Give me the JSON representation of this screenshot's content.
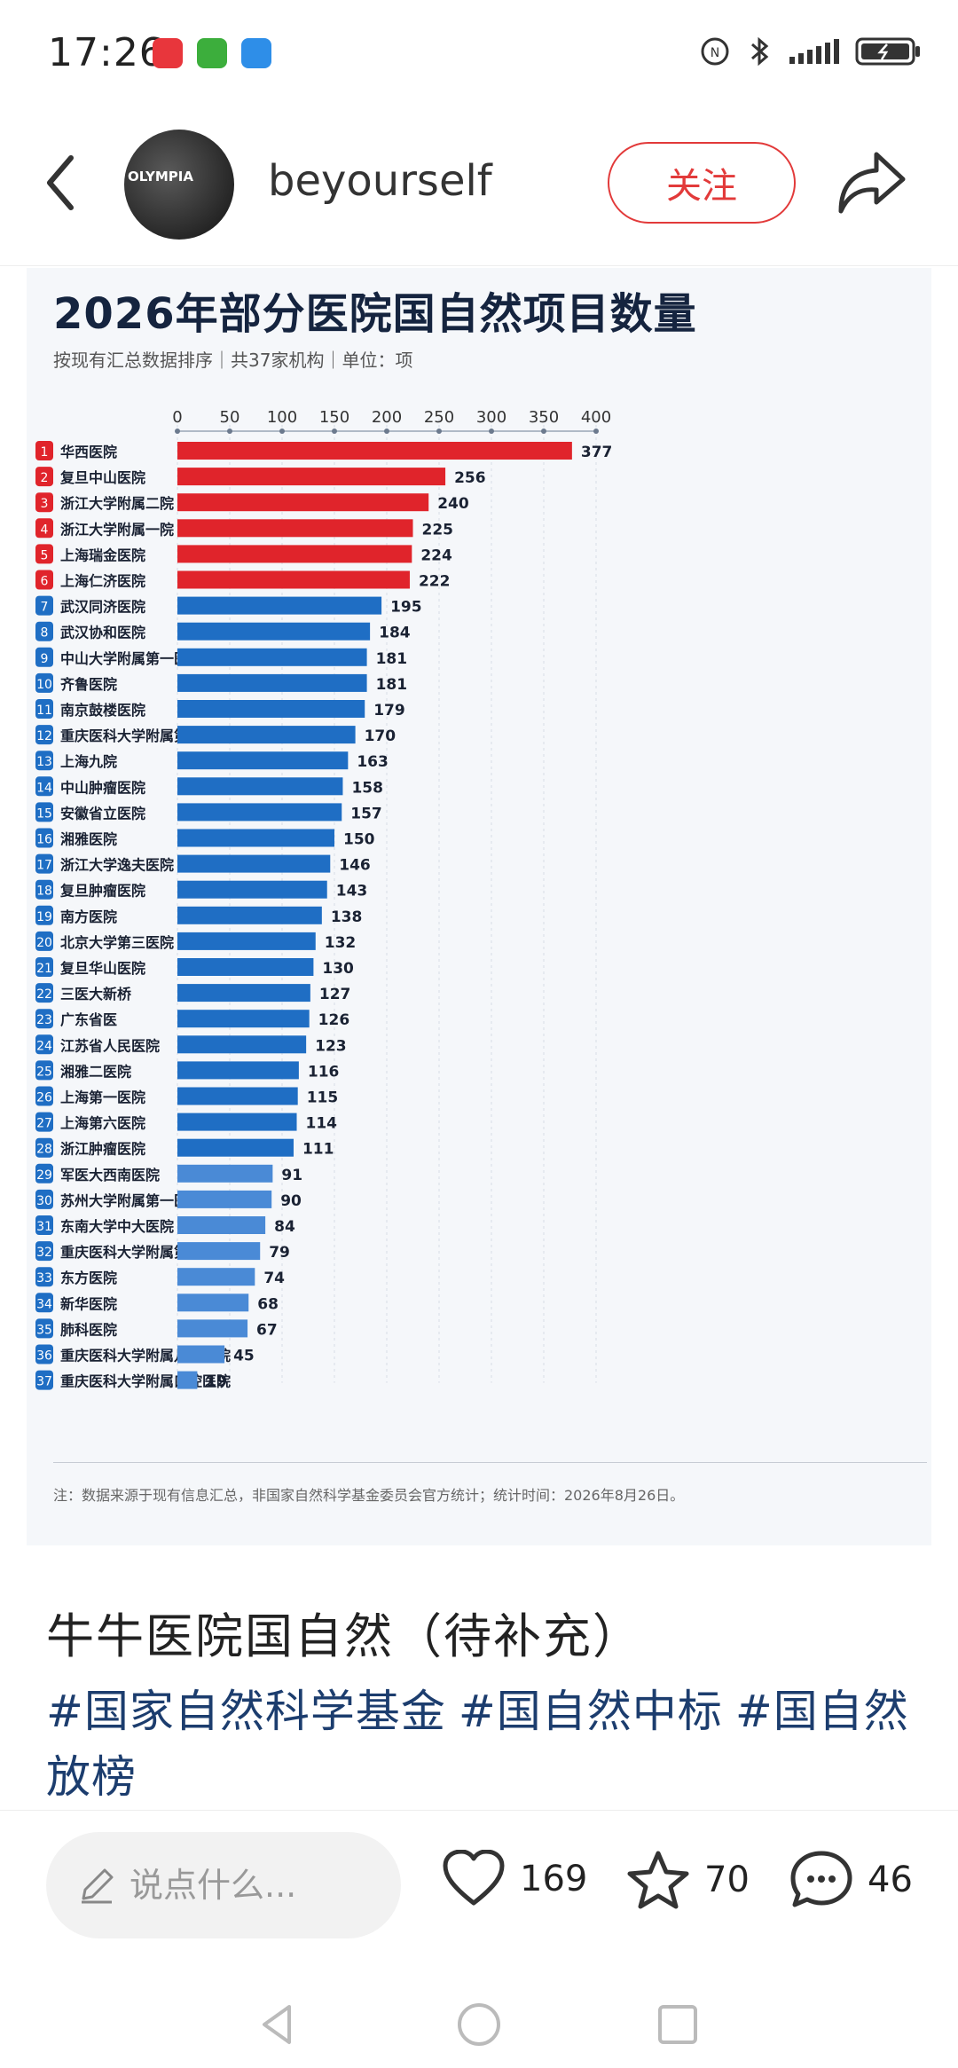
{
  "status_bar": {
    "time": "17:26",
    "app_icons": [
      {
        "name": "huawei-app-icon",
        "color": "#e8363c"
      },
      {
        "name": "green-app-icon",
        "color": "#3cae3c"
      },
      {
        "name": "blue-app-icon",
        "color": "#2e8ee8"
      }
    ],
    "right_icons": [
      "nfc-icon",
      "bluetooth-icon",
      "signal-icon",
      "battery-icon"
    ]
  },
  "header": {
    "avatar_text": "OLYMPIA",
    "username": "beyourself",
    "follow_label": "关注"
  },
  "post_image": {
    "title": "2026年部分医院国自然项目数量",
    "subtitle": "按现有汇总数据排序｜共37家机构｜单位：项",
    "note": "注：数据来源于现有信息汇总，非国家自然科学基金委员会官方统计；统计时间：2026年8月26日。",
    "chart_data": {
      "type": "bar",
      "orientation": "horizontal",
      "xlim": [
        0,
        400
      ],
      "xticks": [
        0,
        50,
        100,
        150,
        200,
        250,
        300,
        350,
        400
      ],
      "colors": {
        "top6": "#e0242b",
        "rest": "#1f6ec4"
      },
      "categories": [
        "华西医院",
        "复旦中山医院",
        "浙江大学附属二院",
        "浙江大学附属一院",
        "上海瑞金医院",
        "上海仁济医院",
        "武汉同济医院",
        "武汉协和医院",
        "中山大学附属第一医院",
        "齐鲁医院",
        "南京鼓楼医院",
        "重庆医科大学附属第一医院",
        "上海九院",
        "中山肿瘤医院",
        "安徽省立医院",
        "湘雅医院",
        "浙江大学逸夫医院",
        "复旦肿瘤医院",
        "南方医院",
        "北京大学第三医院",
        "复旦华山医院",
        "三医大新桥",
        "广东省医",
        "江苏省人民医院",
        "湘雅二医院",
        "上海第一医院",
        "上海第六医院",
        "浙江肿瘤医院",
        "军医大西南医院",
        "苏州大学附属第一医院",
        "东南大学中大医院",
        "重庆医科大学附属第二医院",
        "东方医院",
        "新华医院",
        "肺科医院",
        "重庆医科大学附属儿童医院",
        "重庆医科大学附属口腔医院"
      ],
      "values": [
        377,
        256,
        240,
        225,
        224,
        222,
        195,
        184,
        181,
        181,
        179,
        170,
        163,
        158,
        157,
        150,
        146,
        143,
        138,
        132,
        130,
        127,
        126,
        123,
        116,
        115,
        114,
        111,
        91,
        90,
        84,
        79,
        74,
        68,
        67,
        45,
        19
      ]
    }
  },
  "post": {
    "title": "牛牛医院国自然（待补充）",
    "tags": [
      "#国家自然科学基金",
      "#国自然中标",
      "#国自然放榜"
    ]
  },
  "actions": {
    "comment_placeholder": "说点什么...",
    "likes": "169",
    "stars": "70",
    "comments": "46"
  }
}
